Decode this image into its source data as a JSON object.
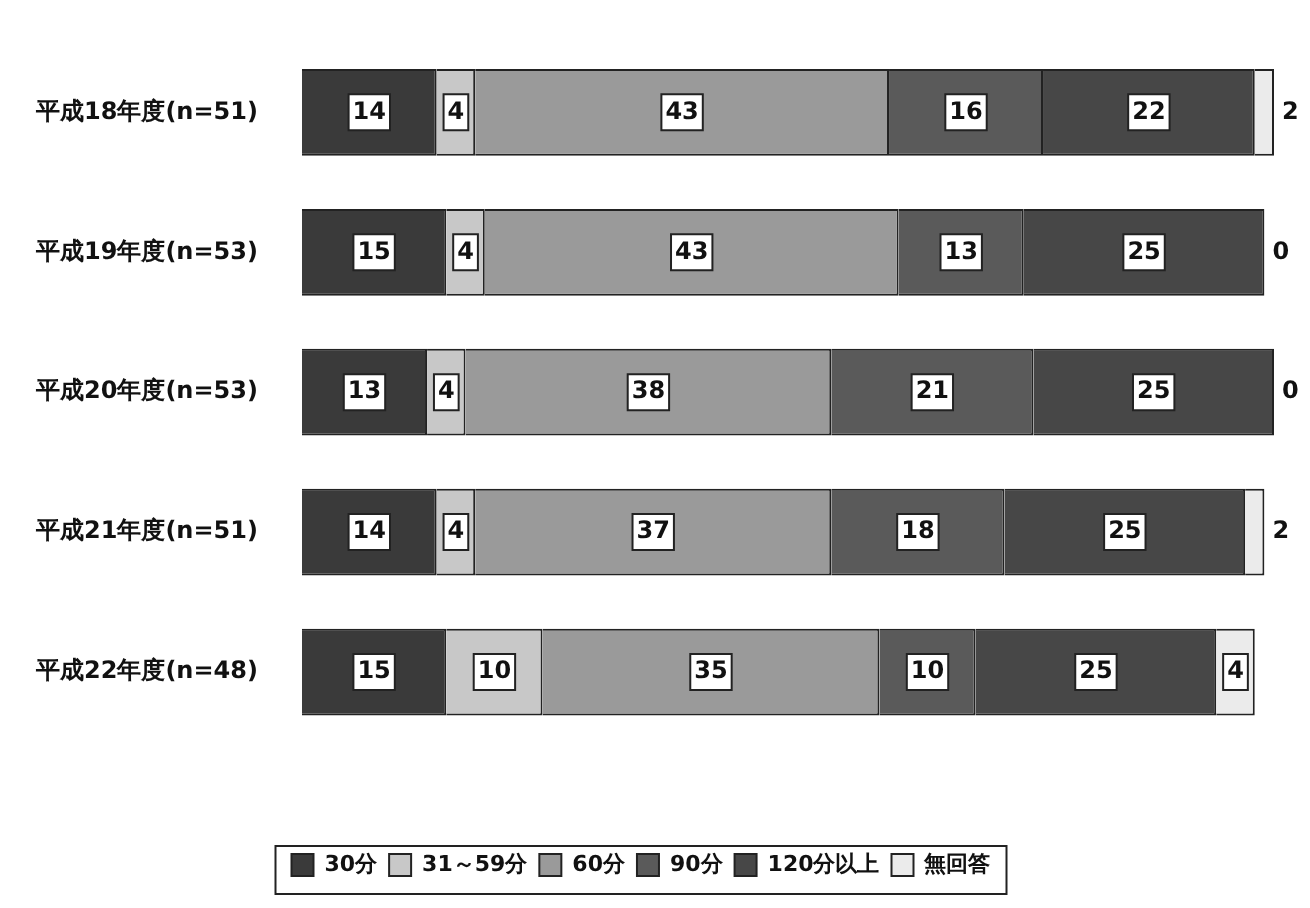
{
  "chart_data": {
    "type": "bar",
    "orientation": "horizontal",
    "stacked": true,
    "categories": [
      "平成18年度(n=51)",
      "平成19年度(n=53)",
      "平成20年度(n=53)",
      "平成21年度(n=51)",
      "平成22年度(n=48)"
    ],
    "series": [
      {
        "name": "30分",
        "color": "#3a3a3a",
        "values": [
          14,
          15,
          13,
          14,
          15
        ]
      },
      {
        "name": "31～59分",
        "color": "#c8c8c8",
        "values": [
          4,
          4,
          4,
          4,
          10
        ]
      },
      {
        "name": "60分",
        "color": "#9a9a9a",
        "values": [
          43,
          43,
          38,
          37,
          35
        ]
      },
      {
        "name": "90分",
        "color": "#5a5a5a",
        "values": [
          16,
          13,
          21,
          18,
          10
        ]
      },
      {
        "name": "120分以上",
        "color": "#474747",
        "values": [
          22,
          25,
          25,
          25,
          25
        ]
      },
      {
        "name": "無回答",
        "color": "#ebebeb",
        "values": [
          2,
          0,
          0,
          2,
          4
        ]
      }
    ],
    "xlim": [
      0,
      101
    ],
    "tick_labels": "y",
    "legend": "bottom",
    "data_labels": true
  }
}
